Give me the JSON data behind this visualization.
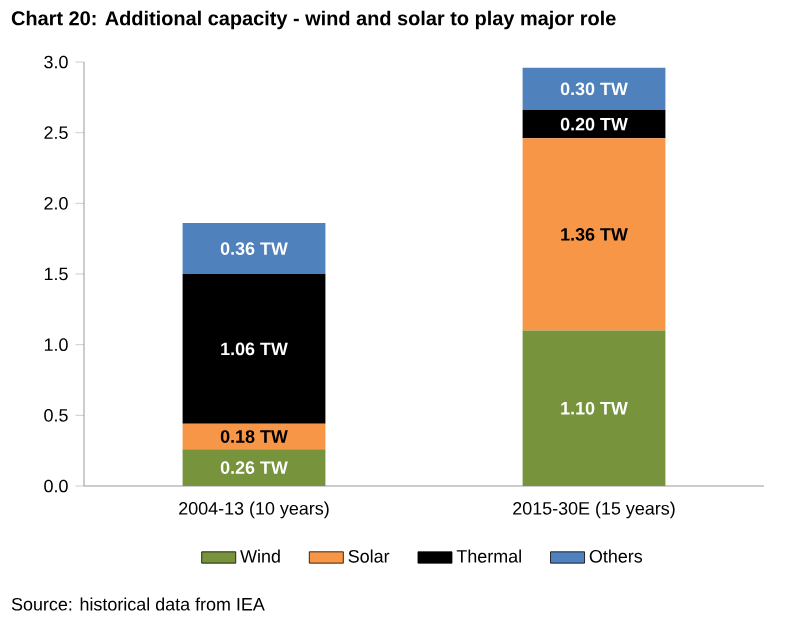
{
  "chart_data": {
    "type": "bar",
    "title": "Chart 20: Additional capacity - wind and solar to play major role",
    "annotations": [
      "Source: historical data from IEA"
    ],
    "categories": [
      "2004-13 (10 years)",
      "2015-30E (15 years)"
    ],
    "stacked": true,
    "ylim": [
      0,
      3
    ],
    "yticks": [
      {
        "value": 0,
        "label": "0.0"
      },
      {
        "value": 0.5,
        "label": "0.5"
      },
      {
        "value": 1,
        "label": "1.0"
      },
      {
        "value": 1.5,
        "label": "1.5"
      },
      {
        "value": 2,
        "label": "2.0"
      },
      {
        "value": 2.5,
        "label": "2.5"
      },
      {
        "value": 3,
        "label": "3.0"
      }
    ],
    "legend": "bottom",
    "series": [
      {
        "name": "Wind",
        "color": "#77933c",
        "values": [
          0.26,
          1.1
        ],
        "value_labels": [
          "0.26 TW",
          "1.10 TW"
        ]
      },
      {
        "name": "Solar",
        "color": "#f79646",
        "values": [
          0.18,
          1.36
        ],
        "value_labels": [
          "0.18 TW",
          "1.36 TW"
        ]
      },
      {
        "name": "Thermal",
        "color": "#000000",
        "values": [
          1.06,
          0.2
        ],
        "value_labels": [
          "1.06 TW",
          "0.20 TW"
        ]
      },
      {
        "name": "Others",
        "color": "#4f81bd",
        "values": [
          0.36,
          0.3
        ],
        "value_labels": [
          "0.36 TW",
          "0.30 TW"
        ]
      }
    ]
  }
}
